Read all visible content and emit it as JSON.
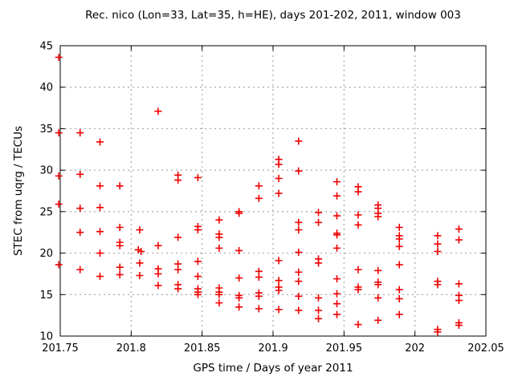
{
  "chart_data": {
    "type": "scatter",
    "title": "Rec. nico (Lon=33, Lat=35, h=HE), days 201-202, 2011, window 003",
    "xlabel": "GPS time / Days of year 2011",
    "ylabel": "STEC from uqrg / TECUs",
    "xlim": [
      201.75,
      202.05
    ],
    "ylim": [
      10,
      45
    ],
    "xtick_values": [
      201.75,
      201.8,
      201.85,
      201.9,
      201.95,
      202,
      202.05
    ],
    "xtick_labels": [
      "201.75",
      "201.8",
      "201.85",
      "201.9",
      "201.95",
      "202",
      "202.05"
    ],
    "ytick_values": [
      10,
      15,
      20,
      25,
      30,
      35,
      40,
      45
    ],
    "ytick_labels": [
      "10",
      "15",
      "20",
      "25",
      "30",
      "35",
      "40",
      "45"
    ],
    "grid": true,
    "legend_position": "none",
    "marker": {
      "shape": "plus",
      "color": "#ee0000",
      "size": 9
    },
    "axis_color": "#000000",
    "grid_color": "#a8a8a8",
    "series": [
      {
        "name": "STEC",
        "points": [
          [
            201.749,
            43.6
          ],
          [
            201.749,
            34.5
          ],
          [
            201.749,
            29.3
          ],
          [
            201.749,
            25.9
          ],
          [
            201.749,
            18.6
          ],
          [
            201.764,
            34.5
          ],
          [
            201.764,
            29.5
          ],
          [
            201.764,
            25.4
          ],
          [
            201.764,
            22.5
          ],
          [
            201.764,
            18.0
          ],
          [
            201.778,
            33.4
          ],
          [
            201.778,
            28.1
          ],
          [
            201.778,
            25.5
          ],
          [
            201.778,
            22.6
          ],
          [
            201.778,
            20.0
          ],
          [
            201.778,
            17.2
          ],
          [
            201.792,
            28.1
          ],
          [
            201.792,
            23.1
          ],
          [
            201.792,
            21.3
          ],
          [
            201.792,
            20.9
          ],
          [
            201.792,
            18.3
          ],
          [
            201.792,
            17.4
          ],
          [
            201.806,
            22.8
          ],
          [
            201.805,
            20.4
          ],
          [
            201.807,
            20.2
          ],
          [
            201.806,
            18.8
          ],
          [
            201.806,
            17.3
          ],
          [
            201.819,
            37.1
          ],
          [
            201.819,
            20.9
          ],
          [
            201.819,
            18.1
          ],
          [
            201.819,
            17.5
          ],
          [
            201.819,
            16.1
          ],
          [
            201.833,
            29.4
          ],
          [
            201.833,
            28.8
          ],
          [
            201.833,
            21.9
          ],
          [
            201.833,
            18.7
          ],
          [
            201.833,
            18.0
          ],
          [
            201.833,
            16.2
          ],
          [
            201.833,
            15.7
          ],
          [
            201.847,
            29.1
          ],
          [
            201.847,
            23.2
          ],
          [
            201.847,
            22.8
          ],
          [
            201.847,
            19.0
          ],
          [
            201.847,
            17.2
          ],
          [
            201.847,
            15.7
          ],
          [
            201.847,
            15.3
          ],
          [
            201.847,
            15.0
          ],
          [
            201.862,
            24.0
          ],
          [
            201.862,
            22.3
          ],
          [
            201.862,
            21.9
          ],
          [
            201.862,
            20.6
          ],
          [
            201.862,
            15.8
          ],
          [
            201.862,
            15.3
          ],
          [
            201.862,
            15.0
          ],
          [
            201.862,
            14.0
          ],
          [
            201.876,
            25.0
          ],
          [
            201.876,
            24.8
          ],
          [
            201.876,
            20.3
          ],
          [
            201.876,
            17.0
          ],
          [
            201.876,
            14.9
          ],
          [
            201.876,
            14.6
          ],
          [
            201.876,
            13.5
          ],
          [
            201.89,
            28.1
          ],
          [
            201.89,
            26.6
          ],
          [
            201.89,
            17.8
          ],
          [
            201.89,
            17.1
          ],
          [
            201.89,
            15.2
          ],
          [
            201.89,
            14.8
          ],
          [
            201.89,
            13.3
          ],
          [
            201.904,
            31.3
          ],
          [
            201.904,
            30.7
          ],
          [
            201.904,
            29.0
          ],
          [
            201.904,
            27.2
          ],
          [
            201.904,
            19.1
          ],
          [
            201.904,
            16.7
          ],
          [
            201.904,
            15.9
          ],
          [
            201.904,
            15.5
          ],
          [
            201.904,
            13.2
          ],
          [
            201.918,
            33.5
          ],
          [
            201.918,
            29.9
          ],
          [
            201.918,
            23.7
          ],
          [
            201.918,
            22.8
          ],
          [
            201.918,
            20.1
          ],
          [
            201.918,
            17.7
          ],
          [
            201.918,
            16.6
          ],
          [
            201.918,
            14.8
          ],
          [
            201.918,
            13.1
          ],
          [
            201.932,
            24.9
          ],
          [
            201.932,
            23.7
          ],
          [
            201.932,
            19.3
          ],
          [
            201.932,
            18.8
          ],
          [
            201.932,
            14.6
          ],
          [
            201.932,
            13.1
          ],
          [
            201.932,
            12.1
          ],
          [
            201.945,
            28.6
          ],
          [
            201.945,
            26.9
          ],
          [
            201.945,
            24.5
          ],
          [
            201.945,
            22.4
          ],
          [
            201.945,
            22.2
          ],
          [
            201.945,
            20.6
          ],
          [
            201.945,
            16.9
          ],
          [
            201.945,
            15.1
          ],
          [
            201.945,
            13.9
          ],
          [
            201.945,
            12.6
          ],
          [
            201.96,
            28.0
          ],
          [
            201.96,
            27.4
          ],
          [
            201.96,
            24.6
          ],
          [
            201.96,
            23.4
          ],
          [
            201.96,
            18.0
          ],
          [
            201.96,
            15.9
          ],
          [
            201.96,
            15.6
          ],
          [
            201.96,
            11.4
          ],
          [
            201.974,
            25.8
          ],
          [
            201.974,
            25.4
          ],
          [
            201.974,
            24.8
          ],
          [
            201.974,
            24.4
          ],
          [
            201.974,
            17.9
          ],
          [
            201.974,
            16.5
          ],
          [
            201.974,
            16.2
          ],
          [
            201.974,
            14.6
          ],
          [
            201.974,
            11.9
          ],
          [
            201.989,
            23.1
          ],
          [
            201.989,
            22.1
          ],
          [
            201.989,
            21.7
          ],
          [
            201.989,
            20.8
          ],
          [
            201.989,
            18.6
          ],
          [
            201.989,
            15.6
          ],
          [
            201.989,
            14.5
          ],
          [
            201.989,
            12.6
          ],
          [
            202.016,
            22.1
          ],
          [
            202.016,
            21.1
          ],
          [
            202.016,
            20.2
          ],
          [
            202.016,
            16.6
          ],
          [
            202.016,
            16.2
          ],
          [
            202.016,
            10.8
          ],
          [
            202.016,
            10.5
          ],
          [
            202.031,
            22.9
          ],
          [
            202.031,
            21.6
          ],
          [
            202.031,
            16.3
          ],
          [
            202.031,
            14.9
          ],
          [
            202.031,
            14.3
          ],
          [
            202.031,
            11.6
          ],
          [
            202.031,
            11.3
          ]
        ]
      }
    ]
  }
}
